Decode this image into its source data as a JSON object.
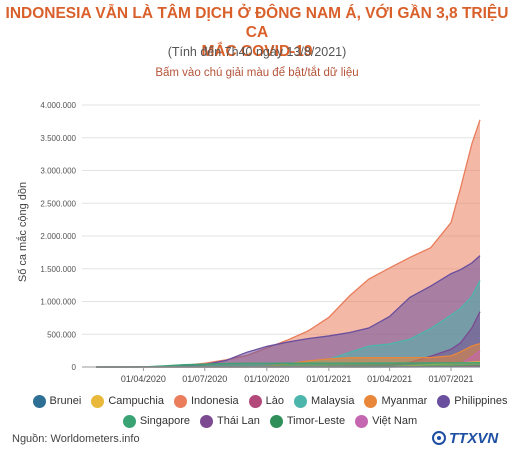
{
  "header": {
    "title_line1": "INDONESIA VẪN LÀ TÂM DỊCH Ở ĐÔNG NAM Á, VỚI GẦN 3,8 TRIỆU CA",
    "title_line2": "MẮC COVID-19",
    "subtitle": "(Tính đến 7h40 ngày 13/8/2021)",
    "hint": "Bấm vào chú giải màu để bật/tắt dữ liệu"
  },
  "footer": {
    "source": "Nguồn: Worldometers.info",
    "logo_text": "TTXVN"
  },
  "chart_data": {
    "type": "area",
    "stacked": false,
    "ylabel": "Số ca mắc cộng dồn",
    "ylim": [
      0,
      4000000
    ],
    "y_ticks": [
      0,
      500000,
      1000000,
      1500000,
      2000000,
      2500000,
      3000000,
      3500000,
      4000000
    ],
    "y_tick_labels": [
      "0",
      "500.000",
      "1.000.000",
      "1.500.000",
      "2.000.000",
      "2.500.000",
      "3.000.000",
      "3.500.000",
      "4.000.000"
    ],
    "x_range": [
      "2020-01-01",
      "2021-08-13"
    ],
    "x_ticks": [
      "2020-04-01",
      "2020-07-01",
      "2020-10-01",
      "2021-01-01",
      "2021-04-01",
      "2021-07-01"
    ],
    "x_tick_labels": [
      "01/04/2020",
      "01/07/2020",
      "01/10/2020",
      "01/01/2021",
      "01/04/2021",
      "01/07/2021"
    ],
    "grid": "horizontal",
    "legend_position": "bottom",
    "x": [
      "2020-01-22",
      "2020-03-01",
      "2020-04-01",
      "2020-05-01",
      "2020-06-01",
      "2020-07-01",
      "2020-08-01",
      "2020-09-01",
      "2020-10-01",
      "2020-11-01",
      "2020-12-01",
      "2021-01-01",
      "2021-02-01",
      "2021-03-01",
      "2021-04-01",
      "2021-05-01",
      "2021-06-01",
      "2021-07-01",
      "2021-07-15",
      "2021-08-01",
      "2021-08-13"
    ],
    "series": [
      {
        "name": "Brunei",
        "color": "#2e6f95",
        "values": [
          0,
          0,
          135,
          138,
          141,
          141,
          141,
          146,
          147,
          148,
          151,
          174,
          186,
          194,
          211,
          232,
          246,
          264,
          282,
          325,
          760
        ]
      },
      {
        "name": "Campuchia",
        "color": "#e8b93a",
        "values": [
          0,
          1,
          109,
          122,
          124,
          141,
          239,
          274,
          283,
          294,
          346,
          382,
          474,
          1163,
          3028,
          18994,
          36000,
          58000,
          65000,
          75000,
          80000
        ]
      },
      {
        "name": "Indonesia",
        "color": "#e97d5c",
        "values": [
          0,
          2,
          1677,
          10118,
          26473,
          57770,
          108376,
          174796,
          291182,
          412784,
          549508,
          758473,
          1089308,
          1341314,
          1511712,
          1672880,
          1821703,
          2203108,
          2726803,
          3409658,
          3774155
        ]
      },
      {
        "name": "Lào",
        "color": "#b3487b",
        "values": [
          0,
          0,
          9,
          19,
          19,
          19,
          20,
          22,
          23,
          24,
          39,
          41,
          45,
          47,
          49,
          1233,
          1900,
          2200,
          2900,
          7600,
          10000
        ]
      },
      {
        "name": "Malaysia",
        "color": "#4db6ac",
        "values": [
          0,
          29,
          2908,
          6071,
          7819,
          8639,
          8976,
          9340,
          11484,
          31548,
          65697,
          118184,
          222628,
          317903,
          350419,
          424376,
          587165,
          792000,
          893000,
          1082000,
          1320000
        ]
      },
      {
        "name": "Myanmar",
        "color": "#e8873a",
        "values": [
          0,
          0,
          15,
          151,
          224,
          304,
          353,
          501,
          10734,
          49868,
          91746,
          124630,
          140354,
          142030,
          142364,
          143048,
          145000,
          170000,
          230000,
          320000,
          356000
        ]
      },
      {
        "name": "Philippines",
        "color": "#6a4f9e",
        "values": [
          0,
          3,
          2311,
          8928,
          18638,
          38805,
          98232,
          224264,
          314079,
          380729,
          432925,
          474064,
          527272,
          594412,
          771497,
          1062225,
          1235467,
          1423623,
          1485000,
          1588965,
          1700000
        ]
      },
      {
        "name": "Singapore",
        "color": "#3aa374",
        "values": [
          0,
          106,
          926,
          17101,
          35292,
          44122,
          52205,
          56948,
          57742,
          57980,
          58213,
          58599,
          59675,
          60167,
          60575,
          61378,
          62158,
          62805,
          64000,
          65000,
          66000
        ]
      },
      {
        "name": "Thái Lan",
        "color": "#7b4a91",
        "values": [
          0,
          42,
          1651,
          2954,
          3081,
          3173,
          3310,
          3411,
          3564,
          3780,
          3998,
          7163,
          23134,
          26162,
          28889,
          69409,
          164290,
          270921,
          367000,
          597000,
          845000
        ]
      },
      {
        "name": "Timor-Leste",
        "color": "#2f8f5a",
        "values": [
          0,
          0,
          1,
          24,
          24,
          24,
          25,
          27,
          27,
          30,
          30,
          49,
          94,
          180,
          872,
          4210,
          8500,
          9700,
          11000,
          14000,
          17000
        ]
      },
      {
        "name": "Việt Nam",
        "color": "#c566b0",
        "values": [
          0,
          16,
          212,
          270,
          328,
          355,
          590,
          1046,
          1094,
          1199,
          1358,
          1474,
          2051,
          2502,
          2633,
          3109,
          9716,
          17576,
          45000,
          155000,
          250000
        ]
      }
    ],
    "draw_order": [
      "Indonesia",
      "Philippines",
      "Malaysia",
      "Thái Lan",
      "Myanmar",
      "Việt Nam",
      "Campuchia",
      "Singapore",
      "Timor-Leste",
      "Lào",
      "Brunei"
    ],
    "legend_rows": [
      [
        "Brunei",
        "Campuchia",
        "Indonesia",
        "Lào",
        "Malaysia",
        "Myanmar",
        "Philippines"
      ],
      [
        "Singapore",
        "Thái Lan",
        "Timor-Leste",
        "Việt Nam"
      ]
    ]
  }
}
